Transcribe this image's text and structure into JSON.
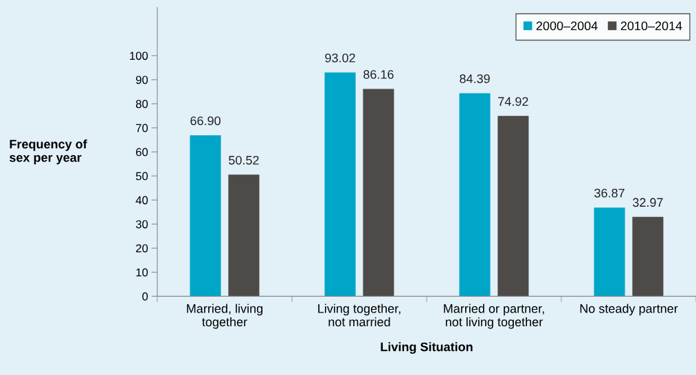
{
  "chart_data": {
    "type": "bar",
    "xlabel": "Living Situation",
    "ylabel": "Frequency of\nsex per year",
    "categories": [
      "Married, living\ntogether",
      "Living together,\nnot married",
      "Married or partner,\nnot living together",
      "No steady partner"
    ],
    "series": [
      {
        "name": "2000–2004",
        "color": "#00a6c8",
        "values": [
          66.9,
          93.02,
          84.39,
          36.87
        ],
        "value_labels": [
          "66.90",
          "93.02",
          "84.39",
          "36.87"
        ]
      },
      {
        "name": "2010–2014",
        "color": "#4d4a48",
        "values": [
          50.52,
          86.16,
          74.92,
          32.97
        ],
        "value_labels": [
          "50.52",
          "86.16",
          "74.92",
          "32.97"
        ]
      }
    ],
    "ylim": [
      0,
      120
    ],
    "yticks": [
      0,
      10,
      20,
      30,
      40,
      50,
      60,
      70,
      80,
      90,
      100
    ],
    "grid": false,
    "legend": "top right"
  }
}
